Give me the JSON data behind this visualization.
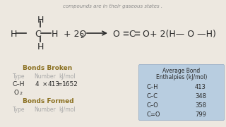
{
  "bg_color": "#ede8e0",
  "top_text": "compounds are in their gaseous states .",
  "top_text_color": "#888888",
  "bonds_broken_title": "Bonds Broken",
  "bonds_color": "#8B7020",
  "bonds_broken_header": [
    "Type",
    "Number",
    "kJ/mol"
  ],
  "bonds_broken_row1": [
    "C–H",
    "4",
    "×",
    "413",
    "=",
    "1652"
  ],
  "bonds_broken_row2_main": "O",
  "bonds_broken_row2_sub": "2",
  "bonds_formed_title": "Bonds Formed",
  "bonds_formed_header": [
    "Type",
    "Number",
    "kJ/mol"
  ],
  "table_title_line1": "Average Bond",
  "table_title_line2": "Enthalpies (kJ/mol)",
  "table_bg": "#b8cde0",
  "table_border": "#9ab0c8",
  "table_rows": [
    [
      "C–H",
      "413"
    ],
    [
      "C–C",
      "348"
    ],
    [
      "C–O",
      "358"
    ],
    [
      "C=O",
      "799"
    ]
  ],
  "header_color": "#aaaaaa",
  "text_color": "#2a2a2a",
  "eq_color": "#2a2a2a"
}
